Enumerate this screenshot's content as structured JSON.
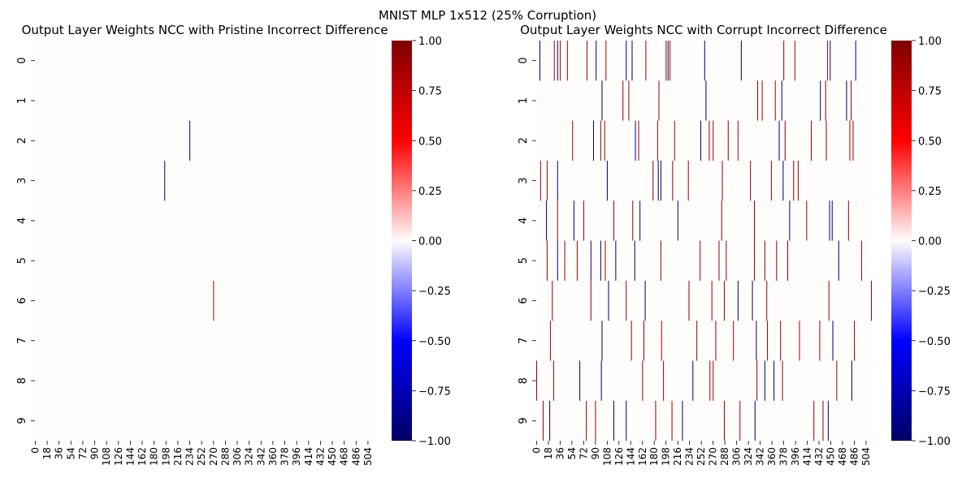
{
  "suptitle": "MNIST MLP 1x512 (25% Corruption)",
  "colors": {
    "neg_end": "#000066",
    "neg_mid": "#0000ff",
    "zero": "#fffcfc",
    "pos_mid": "#ff0000",
    "pos_end": "#7f0000"
  },
  "colorbar_ticks": [
    "1.00",
    "0.75",
    "0.50",
    "0.25",
    "0.00",
    "−0.25",
    "−0.50",
    "−0.75",
    "−1.00"
  ],
  "chart_data": [
    {
      "type": "heatmap",
      "title": "Output Layer Weights NCC with Pristine Incorrect Difference",
      "rows": [
        "0",
        "1",
        "2",
        "3",
        "4",
        "5",
        "6",
        "7",
        "8",
        "9"
      ],
      "columns": 512,
      "xticks": [
        "0",
        "18",
        "36",
        "54",
        "72",
        "90",
        "108",
        "126",
        "144",
        "162",
        "180",
        "198",
        "216",
        "234",
        "252",
        "270",
        "288",
        "306",
        "324",
        "342",
        "360",
        "378",
        "396",
        "414",
        "432",
        "450",
        "468",
        "486",
        "504"
      ],
      "vmin": -1,
      "vmax": 1,
      "background_value": 0,
      "cells": [
        {
          "row": 2,
          "col": 234,
          "value": -1.0
        },
        {
          "row": 3,
          "col": 196,
          "value": -1.0
        },
        {
          "row": 6,
          "col": 270,
          "value": 0.9
        }
      ]
    },
    {
      "type": "heatmap",
      "title": "Output Layer Weights NCC with Corrupt Incorrect Difference",
      "rows": [
        "0",
        "1",
        "2",
        "3",
        "4",
        "5",
        "6",
        "7",
        "8",
        "9"
      ],
      "columns": 512,
      "xticks": [
        "0",
        "18",
        "36",
        "54",
        "72",
        "90",
        "108",
        "126",
        "144",
        "162",
        "180",
        "198",
        "216",
        "234",
        "252",
        "270",
        "288",
        "306",
        "324",
        "342",
        "360",
        "378",
        "396",
        "414",
        "432",
        "450",
        "468",
        "486",
        "504"
      ],
      "vmin": -1,
      "vmax": 1,
      "background_value": 0,
      "cells": [
        {
          "row": 0,
          "col": 5,
          "value": -1
        },
        {
          "row": 0,
          "col": 27,
          "value": 0.9
        },
        {
          "row": 0,
          "col": 32,
          "value": -1
        },
        {
          "row": 0,
          "col": 36,
          "value": 0.9
        },
        {
          "row": 0,
          "col": 47,
          "value": 0.9
        },
        {
          "row": 0,
          "col": 77,
          "value": 0.9
        },
        {
          "row": 0,
          "col": 91,
          "value": -1
        },
        {
          "row": 0,
          "col": 106,
          "value": 0.9
        },
        {
          "row": 0,
          "col": 137,
          "value": -1
        },
        {
          "row": 0,
          "col": 146,
          "value": -1
        },
        {
          "row": 0,
          "col": 167,
          "value": 0.9
        },
        {
          "row": 0,
          "col": 198,
          "value": 0.9
        },
        {
          "row": 0,
          "col": 201,
          "value": -1
        },
        {
          "row": 0,
          "col": 204,
          "value": 0.9
        },
        {
          "row": 0,
          "col": 257,
          "value": -1
        },
        {
          "row": 0,
          "col": 313,
          "value": -1
        },
        {
          "row": 0,
          "col": 378,
          "value": 0.9
        },
        {
          "row": 0,
          "col": 395,
          "value": 0.9
        },
        {
          "row": 0,
          "col": 445,
          "value": 0.9
        },
        {
          "row": 0,
          "col": 449,
          "value": -1
        },
        {
          "row": 0,
          "col": 488,
          "value": -1
        },
        {
          "row": 1,
          "col": 100,
          "value": -1
        },
        {
          "row": 1,
          "col": 132,
          "value": 0.9
        },
        {
          "row": 1,
          "col": 141,
          "value": 0.9
        },
        {
          "row": 1,
          "col": 187,
          "value": 0.9
        },
        {
          "row": 1,
          "col": 259,
          "value": -1
        },
        {
          "row": 1,
          "col": 338,
          "value": 0.9
        },
        {
          "row": 1,
          "col": 345,
          "value": 0.9
        },
        {
          "row": 1,
          "col": 365,
          "value": 0.9
        },
        {
          "row": 1,
          "col": 375,
          "value": -1
        },
        {
          "row": 1,
          "col": 434,
          "value": -1
        },
        {
          "row": 1,
          "col": 442,
          "value": 0.9
        },
        {
          "row": 1,
          "col": 474,
          "value": -1
        },
        {
          "row": 1,
          "col": 481,
          "value": 0.9
        },
        {
          "row": 2,
          "col": 55,
          "value": 0.9
        },
        {
          "row": 2,
          "col": 87,
          "value": -1
        },
        {
          "row": 2,
          "col": 98,
          "value": 0.9
        },
        {
          "row": 2,
          "col": 104,
          "value": 0.9
        },
        {
          "row": 2,
          "col": 151,
          "value": -1
        },
        {
          "row": 2,
          "col": 156,
          "value": 0.9
        },
        {
          "row": 2,
          "col": 185,
          "value": 0.9
        },
        {
          "row": 2,
          "col": 211,
          "value": 0.9
        },
        {
          "row": 2,
          "col": 251,
          "value": -1
        },
        {
          "row": 2,
          "col": 264,
          "value": 0.9
        },
        {
          "row": 2,
          "col": 270,
          "value": 0.9
        },
        {
          "row": 2,
          "col": 293,
          "value": 0.9
        },
        {
          "row": 2,
          "col": 308,
          "value": 0.9
        },
        {
          "row": 2,
          "col": 371,
          "value": -1
        },
        {
          "row": 2,
          "col": 380,
          "value": 0.9
        },
        {
          "row": 2,
          "col": 420,
          "value": 0.9
        },
        {
          "row": 2,
          "col": 443,
          "value": 0.9
        },
        {
          "row": 2,
          "col": 479,
          "value": 0.9
        },
        {
          "row": 2,
          "col": 484,
          "value": 0.9
        },
        {
          "row": 3,
          "col": 6,
          "value": 0.9
        },
        {
          "row": 3,
          "col": 16,
          "value": 0.9
        },
        {
          "row": 3,
          "col": 32,
          "value": -1
        },
        {
          "row": 3,
          "col": 108,
          "value": -1
        },
        {
          "row": 3,
          "col": 178,
          "value": 0.9
        },
        {
          "row": 3,
          "col": 186,
          "value": -1
        },
        {
          "row": 3,
          "col": 190,
          "value": -1
        },
        {
          "row": 3,
          "col": 208,
          "value": 0.9
        },
        {
          "row": 3,
          "col": 232,
          "value": 0.9
        },
        {
          "row": 3,
          "col": 284,
          "value": 0.9
        },
        {
          "row": 3,
          "col": 327,
          "value": 0.9
        },
        {
          "row": 3,
          "col": 359,
          "value": 0.9
        },
        {
          "row": 3,
          "col": 377,
          "value": -1
        },
        {
          "row": 3,
          "col": 393,
          "value": 0.9
        },
        {
          "row": 3,
          "col": 400,
          "value": 0.9
        },
        {
          "row": 4,
          "col": 15,
          "value": -1
        },
        {
          "row": 4,
          "col": 32,
          "value": 0.9
        },
        {
          "row": 4,
          "col": 57,
          "value": -1
        },
        {
          "row": 4,
          "col": 72,
          "value": 0.9
        },
        {
          "row": 4,
          "col": 118,
          "value": 0.9
        },
        {
          "row": 4,
          "col": 147,
          "value": 0.9
        },
        {
          "row": 4,
          "col": 158,
          "value": -1
        },
        {
          "row": 4,
          "col": 216,
          "value": -1
        },
        {
          "row": 4,
          "col": 283,
          "value": 0.9
        },
        {
          "row": 4,
          "col": 333,
          "value": 0.9
        },
        {
          "row": 4,
          "col": 387,
          "value": -1
        },
        {
          "row": 4,
          "col": 413,
          "value": 0.9
        },
        {
          "row": 4,
          "col": 448,
          "value": -1
        },
        {
          "row": 4,
          "col": 452,
          "value": -1
        },
        {
          "row": 4,
          "col": 477,
          "value": 0.9
        },
        {
          "row": 5,
          "col": 16,
          "value": 0.9
        },
        {
          "row": 5,
          "col": 32,
          "value": -1
        },
        {
          "row": 5,
          "col": 43,
          "value": 0.9
        },
        {
          "row": 5,
          "col": 62,
          "value": 0.9
        },
        {
          "row": 5,
          "col": 83,
          "value": -1
        },
        {
          "row": 5,
          "col": 98,
          "value": -1
        },
        {
          "row": 5,
          "col": 105,
          "value": 0.9
        },
        {
          "row": 5,
          "col": 121,
          "value": -1
        },
        {
          "row": 5,
          "col": 150,
          "value": -1
        },
        {
          "row": 5,
          "col": 190,
          "value": 0.9
        },
        {
          "row": 5,
          "col": 250,
          "value": 0.9
        },
        {
          "row": 5,
          "col": 279,
          "value": 0.9
        },
        {
          "row": 5,
          "col": 290,
          "value": 0.9
        },
        {
          "row": 5,
          "col": 333,
          "value": 0.9
        },
        {
          "row": 5,
          "col": 349,
          "value": 0.9
        },
        {
          "row": 5,
          "col": 367,
          "value": 0.9
        },
        {
          "row": 5,
          "col": 384,
          "value": 0.9
        },
        {
          "row": 5,
          "col": 462,
          "value": -1
        },
        {
          "row": 5,
          "col": 497,
          "value": 0.9
        },
        {
          "row": 6,
          "col": 24,
          "value": 0.9
        },
        {
          "row": 6,
          "col": 83,
          "value": 0.9
        },
        {
          "row": 6,
          "col": 110,
          "value": -1
        },
        {
          "row": 6,
          "col": 137,
          "value": 0.9
        },
        {
          "row": 6,
          "col": 166,
          "value": -1
        },
        {
          "row": 6,
          "col": 233,
          "value": 0.9
        },
        {
          "row": 6,
          "col": 268,
          "value": 0.9
        },
        {
          "row": 6,
          "col": 287,
          "value": 0.9
        },
        {
          "row": 6,
          "col": 308,
          "value": -1
        },
        {
          "row": 6,
          "col": 330,
          "value": -1
        },
        {
          "row": 6,
          "col": 352,
          "value": 0.9
        },
        {
          "row": 6,
          "col": 447,
          "value": 0.9
        },
        {
          "row": 6,
          "col": 512,
          "value": 0.9
        },
        {
          "row": 7,
          "col": 21,
          "value": 0.9
        },
        {
          "row": 7,
          "col": 100,
          "value": -1
        },
        {
          "row": 7,
          "col": 145,
          "value": 0.9
        },
        {
          "row": 7,
          "col": 164,
          "value": 0.9
        },
        {
          "row": 7,
          "col": 191,
          "value": 0.9
        },
        {
          "row": 7,
          "col": 245,
          "value": 0.9
        },
        {
          "row": 7,
          "col": 274,
          "value": 0.9
        },
        {
          "row": 7,
          "col": 301,
          "value": 0.9
        },
        {
          "row": 7,
          "col": 336,
          "value": -1
        },
        {
          "row": 7,
          "col": 353,
          "value": 0.9
        },
        {
          "row": 7,
          "col": 373,
          "value": 0.9
        },
        {
          "row": 7,
          "col": 402,
          "value": 0.9
        },
        {
          "row": 7,
          "col": 433,
          "value": 0.9
        },
        {
          "row": 7,
          "col": 453,
          "value": -1
        },
        {
          "row": 7,
          "col": 486,
          "value": 0.9
        },
        {
          "row": 8,
          "col": 0,
          "value": 0.9
        },
        {
          "row": 8,
          "col": 26,
          "value": 0.9
        },
        {
          "row": 8,
          "col": 66,
          "value": -1
        },
        {
          "row": 8,
          "col": 99,
          "value": -1
        },
        {
          "row": 8,
          "col": 162,
          "value": 0.9
        },
        {
          "row": 8,
          "col": 194,
          "value": 0.9
        },
        {
          "row": 8,
          "col": 239,
          "value": -1
        },
        {
          "row": 8,
          "col": 265,
          "value": 0.9
        },
        {
          "row": 8,
          "col": 270,
          "value": 0.9
        },
        {
          "row": 8,
          "col": 337,
          "value": 0.9
        },
        {
          "row": 8,
          "col": 349,
          "value": -1
        },
        {
          "row": 8,
          "col": 363,
          "value": -1
        },
        {
          "row": 8,
          "col": 376,
          "value": 0.9
        },
        {
          "row": 8,
          "col": 459,
          "value": 0.9
        },
        {
          "row": 8,
          "col": 482,
          "value": -1
        },
        {
          "row": 9,
          "col": 10,
          "value": 0.9
        },
        {
          "row": 9,
          "col": 20,
          "value": -1
        },
        {
          "row": 9,
          "col": 76,
          "value": 0.9
        },
        {
          "row": 9,
          "col": 90,
          "value": 0.9
        },
        {
          "row": 9,
          "col": 118,
          "value": -1
        },
        {
          "row": 9,
          "col": 137,
          "value": -1
        },
        {
          "row": 9,
          "col": 182,
          "value": 0.9
        },
        {
          "row": 9,
          "col": 207,
          "value": 0.9
        },
        {
          "row": 9,
          "col": 223,
          "value": -1
        },
        {
          "row": 9,
          "col": 287,
          "value": 0.9
        },
        {
          "row": 9,
          "col": 311,
          "value": 0.9
        },
        {
          "row": 9,
          "col": 334,
          "value": -1
        },
        {
          "row": 9,
          "col": 424,
          "value": 0.9
        },
        {
          "row": 9,
          "col": 438,
          "value": 0.9
        },
        {
          "row": 9,
          "col": 446,
          "value": -1
        }
      ]
    }
  ]
}
